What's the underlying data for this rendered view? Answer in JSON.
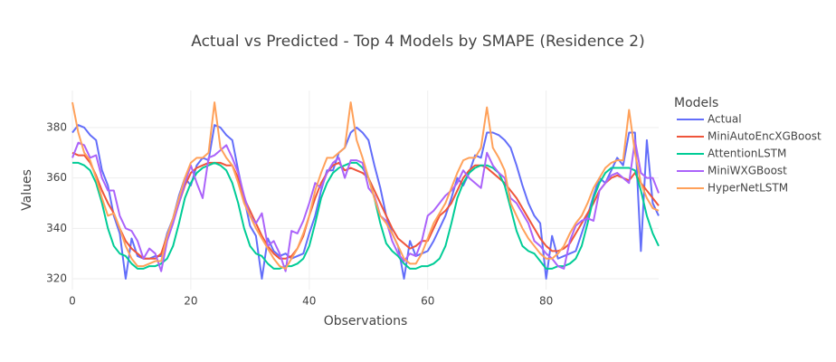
{
  "chart_data": {
    "type": "line",
    "title": "Actual vs Predicted - Top 4 Models by SMAPE (Residence 2)",
    "x_label": "Observations",
    "y_label": "Values",
    "legend_title": "Models",
    "legend_position": "right",
    "grid": true,
    "x": [
      0,
      1,
      2,
      3,
      4,
      5,
      6,
      7,
      8,
      9,
      10,
      11,
      12,
      13,
      14,
      15,
      16,
      17,
      18,
      19,
      20,
      21,
      22,
      23,
      24,
      25,
      26,
      27,
      28,
      29,
      30,
      31,
      32,
      33,
      34,
      35,
      36,
      37,
      38,
      39,
      40,
      41,
      42,
      43,
      44,
      45,
      46,
      47,
      48,
      49,
      50,
      51,
      52,
      53,
      54,
      55,
      56,
      57,
      58,
      59,
      60,
      61,
      62,
      63,
      64,
      65,
      66,
      67,
      68,
      69,
      70,
      71,
      72,
      73,
      74,
      75,
      76,
      77,
      78,
      79,
      80,
      81,
      82,
      83,
      84,
      85,
      86,
      87,
      88,
      89,
      90,
      91,
      92,
      93,
      94,
      95,
      96,
      97,
      98,
      99
    ],
    "xlim": [
      0,
      99
    ],
    "xticks": [
      0,
      20,
      40,
      60,
      80
    ],
    "ylim": [
      315.7,
      394.7
    ],
    "yticks": [
      320,
      340,
      360,
      380
    ],
    "series": [
      {
        "name": "Actual",
        "color": "#636efa",
        "values": [
          378,
          381,
          380,
          377,
          375,
          363,
          357,
          345,
          338,
          320,
          336,
          329,
          328,
          328,
          329,
          329,
          338,
          344,
          353,
          360,
          357,
          365,
          368,
          367,
          381,
          380,
          377,
          375,
          363,
          352,
          341,
          337,
          320,
          336,
          331,
          329,
          330,
          328,
          329,
          330,
          338,
          345,
          355,
          363,
          363,
          370,
          372,
          378,
          380,
          378,
          375,
          365,
          356,
          345,
          338,
          333,
          320,
          335,
          329,
          330,
          331,
          335,
          340,
          345,
          352,
          360,
          357,
          362,
          369,
          368,
          378,
          378,
          377,
          375,
          372,
          365,
          357,
          350,
          345,
          342,
          320,
          337,
          328,
          329,
          330,
          331,
          338,
          345,
          353,
          360,
          358,
          363,
          368,
          365,
          378,
          378,
          331,
          375,
          350,
          345
        ]
      },
      {
        "name": "MiniAutoEncXGBoost",
        "color": "#EF553B",
        "values": [
          370,
          369,
          369,
          366,
          361,
          355,
          350,
          346,
          340,
          335,
          332,
          330,
          328,
          328,
          328,
          330,
          337,
          343,
          350,
          357,
          362,
          364,
          365,
          366,
          366,
          366,
          365,
          365,
          360,
          352,
          347,
          342,
          337,
          333,
          330,
          328,
          328,
          329,
          332,
          337,
          345,
          352,
          358,
          362,
          365,
          366,
          363,
          364,
          363,
          362,
          360,
          355,
          350,
          345,
          340,
          336,
          334,
          332,
          333,
          335,
          335,
          340,
          345,
          347,
          350,
          355,
          360,
          363,
          365,
          365,
          364,
          362,
          360,
          358,
          355,
          352,
          348,
          344,
          340,
          336,
          333,
          331,
          331,
          332,
          334,
          338,
          342,
          346,
          350,
          355,
          358,
          360,
          361,
          360,
          359,
          362,
          358,
          355,
          352,
          349
        ]
      },
      {
        "name": "AttentionLSTM",
        "color": "#00cc96",
        "values": [
          366,
          366,
          365,
          363,
          358,
          350,
          340,
          333,
          330,
          329,
          326,
          324,
          324,
          325,
          325,
          326,
          328,
          333,
          342,
          352,
          358,
          362,
          364,
          365,
          366,
          365,
          363,
          358,
          350,
          340,
          333,
          330,
          329,
          326,
          324,
          324,
          325,
          325,
          326,
          328,
          333,
          342,
          352,
          358,
          362,
          364,
          365,
          366,
          366,
          364,
          360,
          352,
          342,
          334,
          331,
          329,
          326,
          324,
          324,
          325,
          325,
          326,
          328,
          333,
          342,
          352,
          358,
          362,
          364,
          365,
          365,
          364,
          362,
          357,
          348,
          339,
          333,
          331,
          330,
          327,
          324,
          324,
          325,
          325,
          326,
          328,
          333,
          342,
          352,
          358,
          362,
          364,
          364,
          364,
          364,
          363,
          355,
          345,
          338,
          333
        ]
      },
      {
        "name": "MiniWXGBoost",
        "color": "#ab63fa",
        "values": [
          368,
          374,
          373,
          368,
          369,
          360,
          355,
          355,
          345,
          340,
          339,
          335,
          328,
          332,
          330,
          323,
          335,
          342,
          350,
          358,
          365,
          358,
          352,
          368,
          369,
          371,
          373,
          368,
          362,
          353,
          345,
          342,
          346,
          333,
          335,
          330,
          323,
          339,
          338,
          343,
          350,
          358,
          356,
          362,
          366,
          368,
          360,
          367,
          367,
          366,
          356,
          353,
          345,
          343,
          335,
          330,
          327,
          330,
          329,
          335,
          345,
          347,
          350,
          353,
          355,
          358,
          363,
          360,
          358,
          356,
          370,
          365,
          362,
          360,
          352,
          350,
          346,
          342,
          335,
          333,
          330,
          328,
          325,
          324,
          335,
          341,
          343,
          344,
          343,
          355,
          358,
          361,
          362,
          360,
          358,
          375,
          362,
          360,
          360,
          354
        ]
      },
      {
        "name": "HyperNetLSTM",
        "color": "#FFA15A",
        "values": [
          390,
          378,
          370,
          367,
          360,
          352,
          345,
          346,
          340,
          333,
          328,
          325,
          325,
          326,
          327,
          327,
          337,
          344,
          352,
          360,
          366,
          368,
          368,
          370,
          390,
          372,
          368,
          365,
          358,
          350,
          345,
          340,
          336,
          332,
          328,
          325,
          324,
          328,
          332,
          338,
          345,
          355,
          362,
          368,
          368,
          370,
          372,
          390,
          375,
          368,
          360,
          352,
          345,
          342,
          338,
          333,
          328,
          326,
          326,
          330,
          336,
          342,
          346,
          350,
          356,
          362,
          367,
          368,
          368,
          372,
          388,
          372,
          368,
          363,
          350,
          345,
          340,
          336,
          333,
          330,
          328,
          328,
          330,
          333,
          338,
          342,
          345,
          350,
          356,
          360,
          364,
          366,
          367,
          367,
          387,
          370,
          358,
          352,
          348,
          347
        ]
      }
    ]
  }
}
